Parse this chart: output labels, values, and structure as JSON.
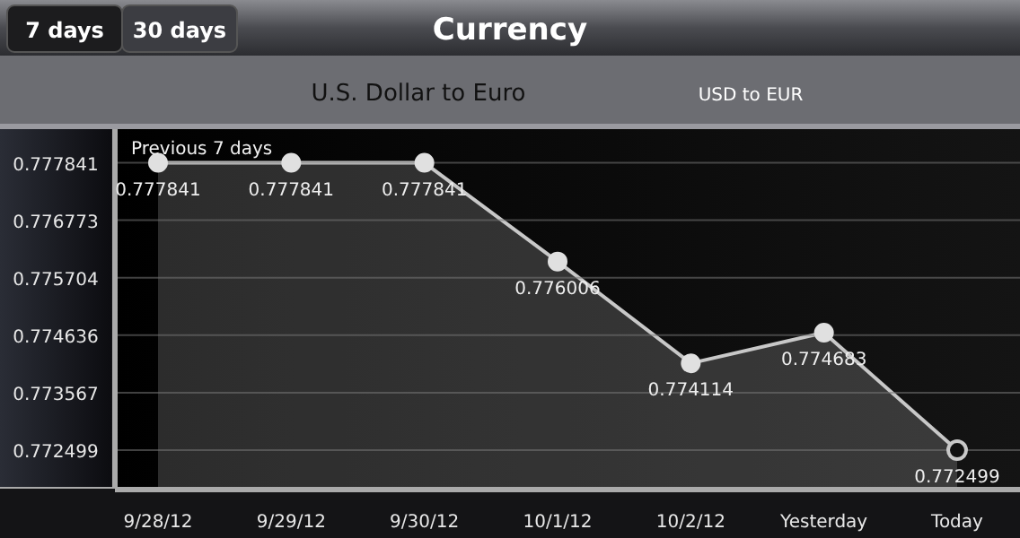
{
  "chart_data": {
    "type": "area",
    "title": "Currency",
    "subtitle": "U.S. Dollar to Euro",
    "annotations": [
      "USD to EUR",
      "Previous 7 days",
      "7 days",
      "30 days"
    ],
    "categories": [
      "9/28/12",
      "9/29/12",
      "9/30/12",
      "10/1/12",
      "10/2/12",
      "Yesterday",
      "Today"
    ],
    "series": [
      {
        "color": "#c8c8c8",
        "values": [
          0.777841,
          0.777841,
          0.777841,
          0.776006,
          0.774114,
          0.774683,
          0.772499
        ]
      }
    ],
    "ylim": [
      0.7718,
      0.7784
    ],
    "yticks": [
      0.772499,
      0.773567,
      0.774636,
      0.775704,
      0.776773,
      0.777841
    ],
    "grid": "y",
    "marker": "circle",
    "line_style": "solid",
    "data_labels": true
  }
}
